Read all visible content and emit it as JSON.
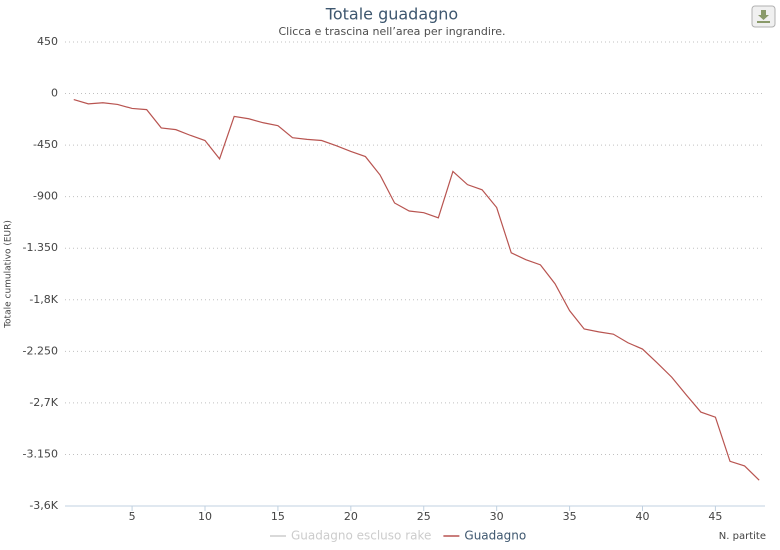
{
  "chart_data": {
    "type": "line",
    "title": "Totale guadagno",
    "subtitle": "Clicca e trascina nell’area per ingrandire.",
    "y_label": "Totale cumulativo (EUR)",
    "x_label": "N. partite",
    "x": [
      1,
      2,
      3,
      4,
      5,
      6,
      7,
      8,
      9,
      10,
      11,
      12,
      13,
      14,
      15,
      16,
      17,
      18,
      19,
      20,
      21,
      22,
      23,
      24,
      25,
      26,
      27,
      28,
      29,
      30,
      31,
      32,
      33,
      34,
      35,
      36,
      37,
      38,
      39,
      40,
      41,
      42,
      43,
      44,
      45,
      46,
      47,
      48
    ],
    "series": [
      {
        "name": "Guadagno escluso rake",
        "color": "#cccccc",
        "visible": false
      },
      {
        "name": "Guadagno",
        "color": "#b85450",
        "visible": true,
        "values": [
          -52,
          -90,
          -80,
          -95,
          -130,
          -140,
          -300,
          -315,
          -365,
          -410,
          -570,
          -200,
          -220,
          -255,
          -280,
          -385,
          -400,
          -410,
          -455,
          -505,
          -550,
          -710,
          -955,
          -1025,
          -1040,
          -1085,
          -680,
          -795,
          -840,
          -995,
          -1390,
          -1450,
          -1495,
          -1660,
          -1895,
          -2055,
          -2080,
          -2100,
          -2175,
          -2230,
          -2350,
          -2475,
          -2630,
          -2780,
          -2825,
          -3210,
          -3250,
          -3375
        ]
      }
    ],
    "xlim": [
      0.4,
      48.4
    ],
    "xticks": [
      5,
      10,
      15,
      20,
      25,
      30,
      35,
      40,
      45
    ],
    "ylim": [
      -3600,
      450
    ],
    "yticks": [
      450,
      0,
      -450,
      -900,
      {
        "value": -1350,
        "label": "-1.350"
      },
      {
        "value": -1800,
        "label": "-1,8K"
      },
      {
        "value": -2250,
        "label": "-2.250"
      },
      {
        "value": -2700,
        "label": "-2,7K"
      },
      {
        "value": -3150,
        "label": "-3.150"
      },
      {
        "value": -3600,
        "label": "-3,6K"
      }
    ],
    "grid": true
  }
}
